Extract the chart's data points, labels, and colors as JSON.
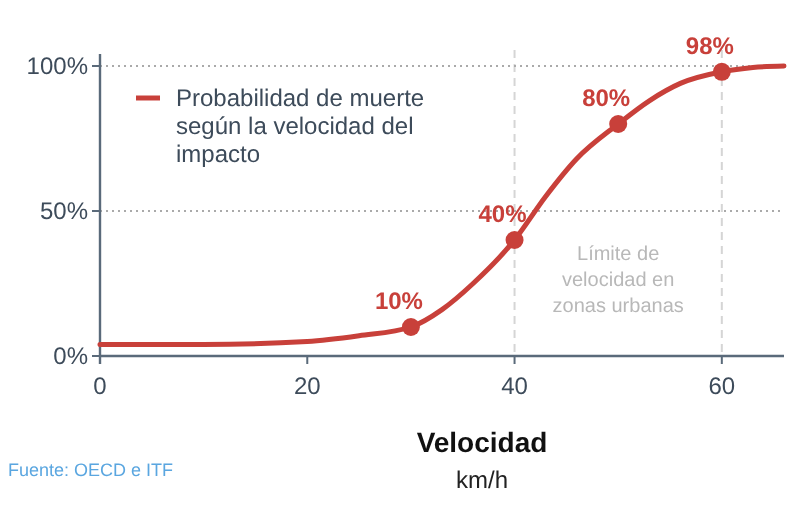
{
  "chart_data": {
    "type": "line",
    "xlabel": "Velocidad",
    "xlim": [
      0,
      66
    ],
    "ylim": [
      0,
      100
    ],
    "xticks": [
      0,
      20,
      40,
      60
    ],
    "yticks": [
      {
        "value": 0,
        "label": "0%"
      },
      {
        "value": 50,
        "label": "50%"
      },
      {
        "value": 100,
        "label": "100%"
      }
    ],
    "legend": "top left",
    "line_style": "solid",
    "series": [
      {
        "name": "Probabilidad de muerte según la velocidad del impacto",
        "color": "#c8403a",
        "marker": "none",
        "x": [
          0,
          10,
          20,
          25,
          30,
          33,
          36,
          40,
          43,
          46,
          50,
          53,
          56,
          60,
          63,
          66
        ],
        "values": [
          4,
          4,
          5,
          7,
          10,
          16,
          25,
          40,
          55,
          68,
          80,
          88,
          94,
          98,
          99.5,
          100
        ]
      },
      {
        "type": "scatter",
        "color": "#c8403a",
        "marker": "circle",
        "x": [
          30,
          40,
          50,
          60
        ],
        "values": [
          10,
          40,
          80,
          98
        ],
        "value_labels": [
          "10%",
          "40%",
          "80%",
          "98%"
        ]
      }
    ],
    "ref_lines": [
      {
        "axis": "x",
        "value": 40,
        "label": null,
        "color": "#d5d5d5",
        "line_style": "dashed"
      },
      {
        "axis": "x",
        "value": 60,
        "label": null,
        "color": "#d5d5d5",
        "line_style": "dashed"
      },
      {
        "axis": "y",
        "value": 50,
        "label": null,
        "color": "#aaaaaa",
        "line_style": "dotted"
      },
      {
        "axis": "y",
        "value": 100,
        "label": null,
        "color": "#aaaaaa",
        "line_style": "dotted"
      }
    ],
    "annotations": [
      "Límite de velocidad en zonas urbanas",
      "km/h",
      "Fuente: OECD e ITF"
    ]
  }
}
